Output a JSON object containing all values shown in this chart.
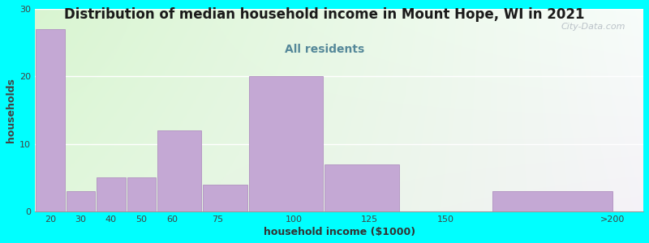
{
  "title": "Distribution of median household income in Mount Hope, WI in 2021",
  "subtitle": "All residents",
  "xlabel": "household income ($1000)",
  "ylabel": "households",
  "background_color": "#00FFFF",
  "bar_color": "#C4A8D4",
  "bar_edge_color": "#B090C0",
  "values": [
    27,
    3,
    5,
    5,
    12,
    4,
    20,
    7,
    0,
    3
  ],
  "bar_lefts": [
    15,
    25,
    35,
    45,
    55,
    70,
    85,
    110,
    135,
    165
  ],
  "bar_widths": [
    10,
    10,
    10,
    10,
    15,
    15,
    25,
    25,
    25,
    40
  ],
  "xtick_positions": [
    20,
    30,
    40,
    50,
    60,
    75,
    100,
    125,
    150,
    205
  ],
  "xtick_labels": [
    "20",
    "30",
    "40",
    "50",
    "60",
    "75",
    "100",
    "125",
    "150",
    ">200"
  ],
  "xlim": [
    15,
    215
  ],
  "ylim": [
    0,
    30
  ],
  "yticks": [
    0,
    10,
    20,
    30
  ],
  "title_fontsize": 12,
  "subtitle_fontsize": 10,
  "axis_label_fontsize": 9,
  "tick_fontsize": 8,
  "watermark": "City-Data.com"
}
